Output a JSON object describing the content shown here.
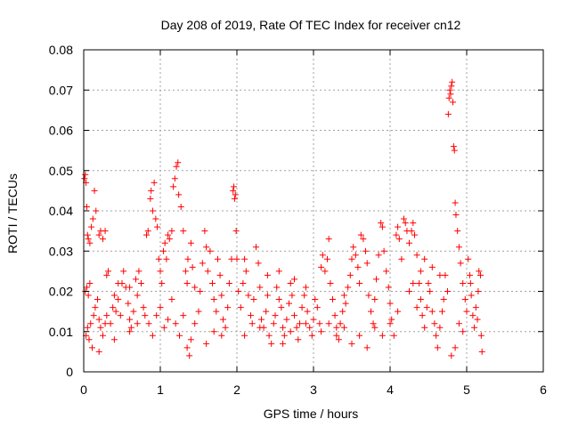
{
  "chart_data": {
    "type": "scatter",
    "title": "Day 208 of 2019, Rate Of TEC Index for receiver cn12",
    "xlabel": "GPS time / hours",
    "ylabel": "ROTI / TECUs",
    "xlim": [
      0,
      6
    ],
    "ylim": [
      0,
      0.08
    ],
    "x_ticks": [
      0,
      1,
      2,
      3,
      4,
      5,
      6
    ],
    "x_tick_labels": [
      "0",
      "1",
      "2",
      "3",
      "4",
      "5",
      "6"
    ],
    "y_ticks": [
      0,
      0.01,
      0.02,
      0.03,
      0.04,
      0.05,
      0.06,
      0.07,
      0.08
    ],
    "y_tick_labels": [
      "0",
      "0.01",
      "0.02",
      "0.03",
      "0.04",
      "0.05",
      "0.06",
      "0.07",
      "0.08"
    ],
    "grid": true,
    "marker": "+",
    "color": "#ff0000",
    "series": [
      {
        "name": "ROTI",
        "points": [
          [
            0.01,
            0.048
          ],
          [
            0.02,
            0.049
          ],
          [
            0.03,
            0.047
          ],
          [
            0.04,
            0.041
          ],
          [
            0.05,
            0.034
          ],
          [
            0.06,
            0.033
          ],
          [
            0.08,
            0.032
          ],
          [
            0.1,
            0.036
          ],
          [
            0.12,
            0.038
          ],
          [
            0.14,
            0.045
          ],
          [
            0.16,
            0.04
          ],
          [
            0.2,
            0.034
          ],
          [
            0.22,
            0.035
          ],
          [
            0.25,
            0.033
          ],
          [
            0.28,
            0.035
          ],
          [
            0.32,
            0.025
          ],
          [
            0.02,
            0.02
          ],
          [
            0.04,
            0.021
          ],
          [
            0.06,
            0.019
          ],
          [
            0.08,
            0.022
          ],
          [
            0.03,
            0.009
          ],
          [
            0.05,
            0.011
          ],
          [
            0.07,
            0.008
          ],
          [
            0.09,
            0.012
          ],
          [
            0.11,
            0.006
          ],
          [
            0.13,
            0.014
          ],
          [
            0.15,
            0.016
          ],
          [
            0.18,
            0.018
          ],
          [
            0.2,
            0.013
          ],
          [
            0.22,
            0.011
          ],
          [
            0.25,
            0.009
          ],
          [
            0.28,
            0.012
          ],
          [
            0.3,
            0.014
          ],
          [
            0.35,
            0.012
          ],
          [
            0.38,
            0.016
          ],
          [
            0.4,
            0.019
          ],
          [
            0.42,
            0.015
          ],
          [
            0.45,
            0.018
          ],
          [
            0.48,
            0.014
          ],
          [
            0.5,
            0.022
          ],
          [
            0.52,
            0.025
          ],
          [
            0.55,
            0.021
          ],
          [
            0.58,
            0.017
          ],
          [
            0.6,
            0.013
          ],
          [
            0.62,
            0.011
          ],
          [
            0.65,
            0.015
          ],
          [
            0.68,
            0.023
          ],
          [
            0.7,
            0.019
          ],
          [
            0.72,
            0.025
          ],
          [
            0.75,
            0.022
          ],
          [
            0.78,
            0.016
          ],
          [
            0.8,
            0.014
          ],
          [
            0.82,
            0.034
          ],
          [
            0.84,
            0.035
          ],
          [
            0.87,
            0.043
          ],
          [
            0.88,
            0.045
          ],
          [
            0.9,
            0.04
          ],
          [
            0.92,
            0.047
          ],
          [
            0.94,
            0.038
          ],
          [
            0.96,
            0.036
          ],
          [
            0.98,
            0.028
          ],
          [
            1.0,
            0.025
          ],
          [
            1.02,
            0.022
          ],
          [
            1.04,
            0.03
          ],
          [
            1.06,
            0.032
          ],
          [
            1.08,
            0.028
          ],
          [
            1.1,
            0.034
          ],
          [
            1.12,
            0.033
          ],
          [
            1.15,
            0.035
          ],
          [
            1.17,
            0.046
          ],
          [
            1.19,
            0.048
          ],
          [
            1.21,
            0.051
          ],
          [
            1.23,
            0.052
          ],
          [
            1.24,
            0.044
          ],
          [
            1.27,
            0.041
          ],
          [
            1.3,
            0.035
          ],
          [
            1.33,
            0.025
          ],
          [
            1.36,
            0.028
          ],
          [
            1.4,
            0.032
          ],
          [
            1.42,
            0.026
          ],
          [
            0.85,
            0.012
          ],
          [
            0.9,
            0.009
          ],
          [
            0.95,
            0.014
          ],
          [
            1.0,
            0.016
          ],
          [
            1.05,
            0.011
          ],
          [
            1.1,
            0.013
          ],
          [
            1.15,
            0.018
          ],
          [
            1.2,
            0.012
          ],
          [
            1.25,
            0.009
          ],
          [
            1.3,
            0.014
          ],
          [
            1.35,
            0.006
          ],
          [
            1.38,
            0.004
          ],
          [
            1.4,
            0.008
          ],
          [
            1.45,
            0.012
          ],
          [
            1.5,
            0.015
          ],
          [
            1.52,
            0.02
          ],
          [
            1.55,
            0.027
          ],
          [
            1.58,
            0.035
          ],
          [
            1.6,
            0.031
          ],
          [
            1.62,
            0.025
          ],
          [
            1.65,
            0.03
          ],
          [
            1.68,
            0.022
          ],
          [
            1.7,
            0.018
          ],
          [
            1.73,
            0.015
          ],
          [
            1.75,
            0.028
          ],
          [
            1.78,
            0.024
          ],
          [
            1.8,
            0.019
          ],
          [
            1.82,
            0.013
          ],
          [
            1.85,
            0.011
          ],
          [
            1.88,
            0.016
          ],
          [
            1.9,
            0.022
          ],
          [
            1.93,
            0.028
          ],
          [
            1.95,
            0.045
          ],
          [
            1.96,
            0.046
          ],
          [
            1.97,
            0.043
          ],
          [
            1.98,
            0.044
          ],
          [
            1.99,
            0.035
          ],
          [
            2.0,
            0.028
          ],
          [
            2.02,
            0.02
          ],
          [
            2.05,
            0.016
          ],
          [
            2.08,
            0.022
          ],
          [
            2.1,
            0.028
          ],
          [
            2.12,
            0.025
          ],
          [
            2.15,
            0.019
          ],
          [
            2.18,
            0.014
          ],
          [
            2.2,
            0.012
          ],
          [
            2.22,
            0.018
          ],
          [
            2.25,
            0.031
          ],
          [
            2.28,
            0.027
          ],
          [
            2.3,
            0.021
          ],
          [
            2.32,
            0.013
          ],
          [
            2.35,
            0.011
          ],
          [
            2.38,
            0.015
          ],
          [
            2.4,
            0.019
          ],
          [
            2.42,
            0.009
          ],
          [
            2.45,
            0.007
          ],
          [
            2.48,
            0.012
          ],
          [
            2.5,
            0.014
          ],
          [
            2.52,
            0.021
          ],
          [
            2.55,
            0.018
          ],
          [
            2.58,
            0.016
          ],
          [
            2.6,
            0.011
          ],
          [
            2.62,
            0.009
          ],
          [
            2.65,
            0.013
          ],
          [
            2.68,
            0.017
          ],
          [
            2.7,
            0.022
          ],
          [
            2.72,
            0.019
          ],
          [
            2.75,
            0.014
          ],
          [
            2.78,
            0.011
          ],
          [
            2.8,
            0.008
          ],
          [
            2.82,
            0.012
          ],
          [
            2.85,
            0.016
          ],
          [
            2.88,
            0.019
          ],
          [
            2.9,
            0.021
          ],
          [
            2.92,
            0.015
          ],
          [
            2.95,
            0.011
          ],
          [
            2.98,
            0.009
          ],
          [
            3.0,
            0.013
          ],
          [
            3.02,
            0.018
          ],
          [
            3.05,
            0.016
          ],
          [
            3.08,
            0.012
          ],
          [
            3.1,
            0.026
          ],
          [
            3.12,
            0.029
          ],
          [
            3.15,
            0.025
          ],
          [
            3.18,
            0.028
          ],
          [
            3.2,
            0.033
          ],
          [
            3.22,
            0.022
          ],
          [
            3.25,
            0.018
          ],
          [
            3.28,
            0.014
          ],
          [
            3.3,
            0.011
          ],
          [
            3.33,
            0.008
          ],
          [
            3.35,
            0.012
          ],
          [
            3.38,
            0.015
          ],
          [
            3.4,
            0.019
          ],
          [
            3.42,
            0.017
          ],
          [
            3.45,
            0.021
          ],
          [
            3.48,
            0.024
          ],
          [
            3.5,
            0.028
          ],
          [
            3.52,
            0.031
          ],
          [
            3.55,
            0.029
          ],
          [
            3.58,
            0.026
          ],
          [
            3.6,
            0.022
          ],
          [
            3.62,
            0.034
          ],
          [
            3.65,
            0.033
          ],
          [
            3.68,
            0.03
          ],
          [
            3.7,
            0.027
          ],
          [
            3.72,
            0.019
          ],
          [
            3.75,
            0.015
          ],
          [
            3.78,
            0.012
          ],
          [
            3.8,
            0.018
          ],
          [
            3.82,
            0.023
          ],
          [
            3.85,
            0.029
          ],
          [
            3.88,
            0.037
          ],
          [
            3.9,
            0.036
          ],
          [
            3.92,
            0.03
          ],
          [
            3.95,
            0.025
          ],
          [
            3.98,
            0.021
          ],
          [
            4.0,
            0.017
          ],
          [
            4.02,
            0.013
          ],
          [
            4.05,
            0.009
          ],
          [
            4.08,
            0.034
          ],
          [
            4.1,
            0.036
          ],
          [
            4.12,
            0.033
          ],
          [
            4.15,
            0.028
          ],
          [
            4.18,
            0.038
          ],
          [
            4.2,
            0.037
          ],
          [
            4.22,
            0.035
          ],
          [
            4.25,
            0.032
          ],
          [
            4.28,
            0.035
          ],
          [
            4.3,
            0.037
          ],
          [
            4.32,
            0.034
          ],
          [
            4.35,
            0.029
          ],
          [
            4.38,
            0.022
          ],
          [
            4.4,
            0.018
          ],
          [
            4.42,
            0.014
          ],
          [
            4.45,
            0.011
          ],
          [
            4.48,
            0.016
          ],
          [
            4.5,
            0.022
          ],
          [
            4.52,
            0.02
          ],
          [
            4.55,
            0.015
          ],
          [
            4.58,
            0.012
          ],
          [
            4.6,
            0.009
          ],
          [
            4.62,
            0.006
          ],
          [
            4.65,
            0.011
          ],
          [
            4.68,
            0.015
          ],
          [
            4.7,
            0.018
          ],
          [
            4.72,
            0.024
          ],
          [
            4.75,
            0.02
          ],
          [
            4.76,
            0.064
          ],
          [
            4.77,
            0.068
          ],
          [
            4.78,
            0.07
          ],
          [
            4.79,
            0.069
          ],
          [
            4.8,
            0.071
          ],
          [
            4.81,
            0.072
          ],
          [
            4.82,
            0.067
          ],
          [
            4.83,
            0.056
          ],
          [
            4.84,
            0.055
          ],
          [
            4.85,
            0.042
          ],
          [
            4.86,
            0.039
          ],
          [
            4.88,
            0.035
          ],
          [
            4.9,
            0.031
          ],
          [
            4.92,
            0.027
          ],
          [
            4.95,
            0.022
          ],
          [
            4.98,
            0.018
          ],
          [
            5.0,
            0.015
          ],
          [
            5.02,
            0.028
          ],
          [
            5.04,
            0.024
          ],
          [
            5.06,
            0.019
          ],
          [
            5.08,
            0.014
          ],
          [
            5.1,
            0.011
          ],
          [
            5.12,
            0.016
          ],
          [
            5.14,
            0.013
          ],
          [
            5.16,
            0.025
          ],
          [
            5.18,
            0.024
          ],
          [
            5.19,
            0.009
          ],
          [
            5.2,
            0.005
          ],
          [
            4.8,
            0.004
          ],
          [
            4.85,
            0.006
          ],
          [
            4.9,
            0.012
          ],
          [
            4.95,
            0.01
          ],
          [
            3.1,
            0.01
          ],
          [
            3.2,
            0.012
          ],
          [
            3.3,
            0.009
          ],
          [
            3.4,
            0.011
          ],
          [
            3.5,
            0.007
          ],
          [
            3.6,
            0.009
          ],
          [
            3.7,
            0.006
          ],
          [
            3.8,
            0.011
          ],
          [
            3.9,
            0.009
          ],
          [
            4.0,
            0.012
          ],
          [
            0.2,
            0.005
          ],
          [
            0.4,
            0.008
          ],
          [
            0.6,
            0.01
          ],
          [
            0.7,
            0.012
          ],
          [
            1.6,
            0.007
          ],
          [
            1.7,
            0.01
          ],
          [
            1.8,
            0.009
          ],
          [
            2.1,
            0.009
          ],
          [
            2.3,
            0.011
          ],
          [
            2.6,
            0.007
          ],
          [
            2.7,
            0.01
          ],
          [
            2.9,
            0.012
          ],
          [
            0.3,
            0.024
          ],
          [
            0.45,
            0.022
          ],
          [
            0.6,
            0.021
          ],
          [
            1.35,
            0.022
          ],
          [
            1.45,
            0.021
          ],
          [
            2.4,
            0.024
          ],
          [
            2.55,
            0.025
          ],
          [
            2.75,
            0.023
          ],
          [
            4.4,
            0.025
          ],
          [
            4.45,
            0.028
          ],
          [
            4.55,
            0.026
          ],
          [
            4.65,
            0.024
          ],
          [
            5.05,
            0.022
          ],
          [
            5.15,
            0.02
          ],
          [
            4.25,
            0.02
          ],
          [
            4.3,
            0.022
          ],
          [
            4.35,
            0.016
          ],
          [
            4.1,
            0.015
          ]
        ]
      }
    ]
  }
}
